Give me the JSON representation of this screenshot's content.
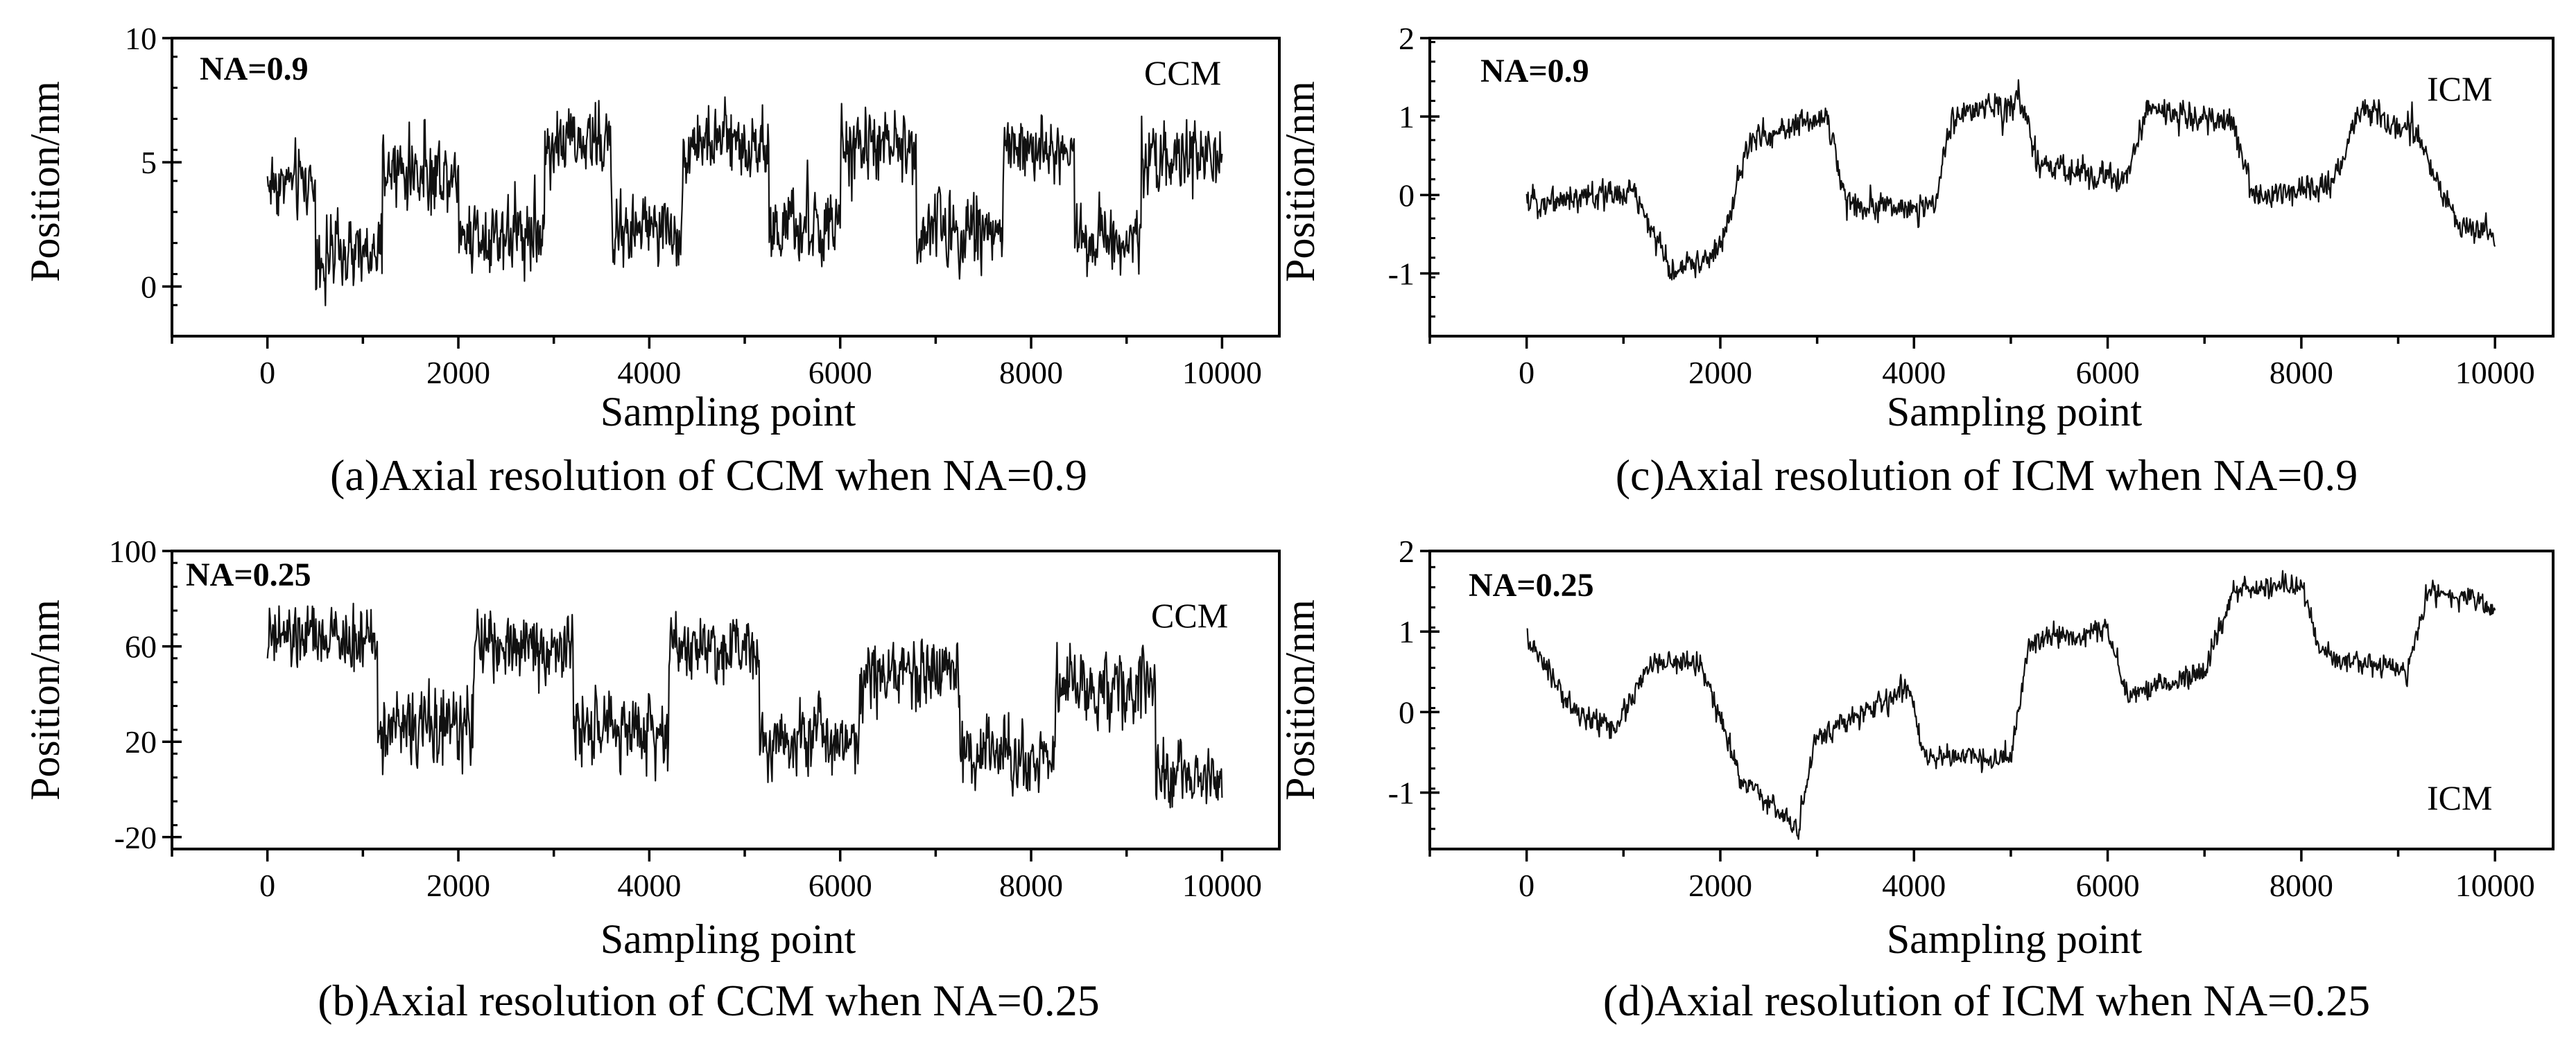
{
  "figure": {
    "panels": [
      {
        "id": "a",
        "caption": "(a)Axial resolution of CCM when NA=0.9",
        "na_label": "NA=0.9",
        "method_label": "CCM",
        "chart_data": {
          "type": "line",
          "title": "",
          "xlabel": "Sampling point",
          "ylabel": "Position/nm",
          "xlim": [
            -1000,
            10600
          ],
          "ylim": [
            -2,
            10
          ],
          "xticks": [
            0,
            2000,
            4000,
            6000,
            8000,
            10000
          ],
          "xtick_labels": [
            "0",
            "2000",
            "4000",
            "6000",
            "8000",
            "10000"
          ],
          "yticks": [
            0,
            5,
            10
          ],
          "ytick_labels": [
            "0",
            "5",
            "10"
          ],
          "series": [
            {
              "name": "CCM NA=0.9",
              "noise": 1.0,
              "segments": [
                [
                  0,
                  500,
                  4.2
                ],
                [
                  500,
                  1200,
                  1.2
                ],
                [
                  1200,
                  2000,
                  4.6
                ],
                [
                  2000,
                  2900,
                  2.2
                ],
                [
                  2900,
                  3600,
                  5.8
                ],
                [
                  3600,
                  4350,
                  2.3
                ],
                [
                  4350,
                  5250,
                  5.8
                ],
                [
                  5250,
                  6000,
                  2.3
                ],
                [
                  6000,
                  6800,
                  5.6
                ],
                [
                  6800,
                  7700,
                  2.3
                ],
                [
                  7700,
                  8450,
                  5.5
                ],
                [
                  8450,
                  9150,
                  2.0
                ],
                [
                  9150,
                  10000,
                  5.2
                ]
              ]
            }
          ]
        }
      },
      {
        "id": "b",
        "caption": "(b)Axial resolution of CCM when NA=0.25",
        "na_label": "NA=0.25",
        "method_label": "CCM",
        "chart_data": {
          "type": "line",
          "title": "",
          "xlabel": "Sampling point",
          "ylabel": "Position/nm",
          "xlim": [
            -1000,
            10600
          ],
          "ylim": [
            -25,
            100
          ],
          "xticks": [
            0,
            2000,
            4000,
            6000,
            8000,
            10000
          ],
          "xtick_labels": [
            "0",
            "2000",
            "4000",
            "6000",
            "8000",
            "10000"
          ],
          "yticks": [
            -20,
            20,
            60,
            100
          ],
          "ytick_labels": [
            "-20",
            "20",
            "60",
            "100"
          ],
          "series": [
            {
              "name": "CCM NA=0.25",
              "noise": 10,
              "segments": [
                [
                  0,
                  1150,
                  63
                ],
                [
                  1150,
                  2150,
                  26
                ],
                [
                  2150,
                  3200,
                  60
                ],
                [
                  3200,
                  4200,
                  25
                ],
                [
                  4200,
                  5150,
                  60
                ],
                [
                  5150,
                  6200,
                  22
                ],
                [
                  6200,
                  7250,
                  50
                ],
                [
                  7250,
                  8250,
                  15
                ],
                [
                  8250,
                  9300,
                  42
                ],
                [
                  9300,
                  10000,
                  5
                ]
              ]
            }
          ]
        }
      },
      {
        "id": "c",
        "caption": "(c)Axial resolution of ICM when NA=0.9",
        "na_label": "NA=0.9",
        "method_label": "ICM",
        "chart_data": {
          "type": "line",
          "title": "",
          "xlabel": "Sampling point",
          "ylabel": "Position/nm",
          "xlim": [
            -1000,
            10600
          ],
          "ylim": [
            -1.8,
            2
          ],
          "xticks": [
            0,
            2000,
            4000,
            6000,
            8000,
            10000
          ],
          "xtick_labels": [
            "0",
            "2000",
            "4000",
            "6000",
            "8000",
            "10000"
          ],
          "yticks": [
            -1,
            0,
            1,
            2
          ],
          "ytick_labels": [
            "-1",
            "0",
            "1",
            "2"
          ],
          "series": [
            {
              "name": "ICM NA=0.9",
              "noise": 0.12,
              "points": [
                [
                  0,
                  -0.1
                ],
                [
                  1100,
                  0.05
                ],
                [
                  1500,
                  -1.0
                ],
                [
                  2000,
                  -0.7
                ],
                [
                  2300,
                  0.7
                ],
                [
                  3100,
                  1.0
                ],
                [
                  3300,
                  -0.1
                ],
                [
                  4200,
                  -0.2
                ],
                [
                  4400,
                  1.0
                ],
                [
                  5100,
                  1.2
                ],
                [
                  5300,
                  0.35
                ],
                [
                  6200,
                  0.2
                ],
                [
                  6400,
                  1.1
                ],
                [
                  7300,
                  0.9
                ],
                [
                  7500,
                  0.0
                ],
                [
                  8300,
                  0.1
                ],
                [
                  8600,
                  1.1
                ],
                [
                  9200,
                  0.8
                ],
                [
                  9600,
                  -0.4
                ],
                [
                  10000,
                  -0.5
                ]
              ]
            }
          ]
        }
      },
      {
        "id": "d",
        "caption": "(d)Axial resolution of ICM when NA=0.25",
        "na_label": "NA=0.25",
        "method_label": "ICM",
        "chart_data": {
          "type": "line",
          "title": "",
          "xlabel": "Sampling point",
          "ylabel": "Position/nm",
          "xlim": [
            -1000,
            10600
          ],
          "ylim": [
            -1.7,
            2
          ],
          "xticks": [
            0,
            2000,
            4000,
            6000,
            8000,
            10000
          ],
          "xtick_labels": [
            "0",
            "2000",
            "4000",
            "6000",
            "8000",
            "10000"
          ],
          "yticks": [
            -1,
            0,
            1,
            2
          ],
          "ytick_labels": [
            "-1",
            "0",
            "1",
            "2"
          ],
          "series": [
            {
              "name": "ICM NA=0.25",
              "noise": 0.1,
              "points": [
                [
                  0,
                  0.9
                ],
                [
                  500,
                  0.0
                ],
                [
                  900,
                  -0.2
                ],
                [
                  1300,
                  0.6
                ],
                [
                  1800,
                  0.6
                ],
                [
                  2200,
                  -0.8
                ],
                [
                  2800,
                  -1.45
                ],
                [
                  3000,
                  -0.3
                ],
                [
                  3500,
                  0.0
                ],
                [
                  3950,
                  0.3
                ],
                [
                  4100,
                  -0.55
                ],
                [
                  5000,
                  -0.6
                ],
                [
                  5200,
                  0.9
                ],
                [
                  6000,
                  1.0
                ],
                [
                  6200,
                  0.2
                ],
                [
                  7000,
                  0.5
                ],
                [
                  7300,
                  1.5
                ],
                [
                  8000,
                  1.6
                ],
                [
                  8200,
                  0.7
                ],
                [
                  9100,
                  0.5
                ],
                [
                  9300,
                  1.5
                ],
                [
                  10000,
                  1.3
                ]
              ]
            }
          ]
        }
      }
    ]
  }
}
